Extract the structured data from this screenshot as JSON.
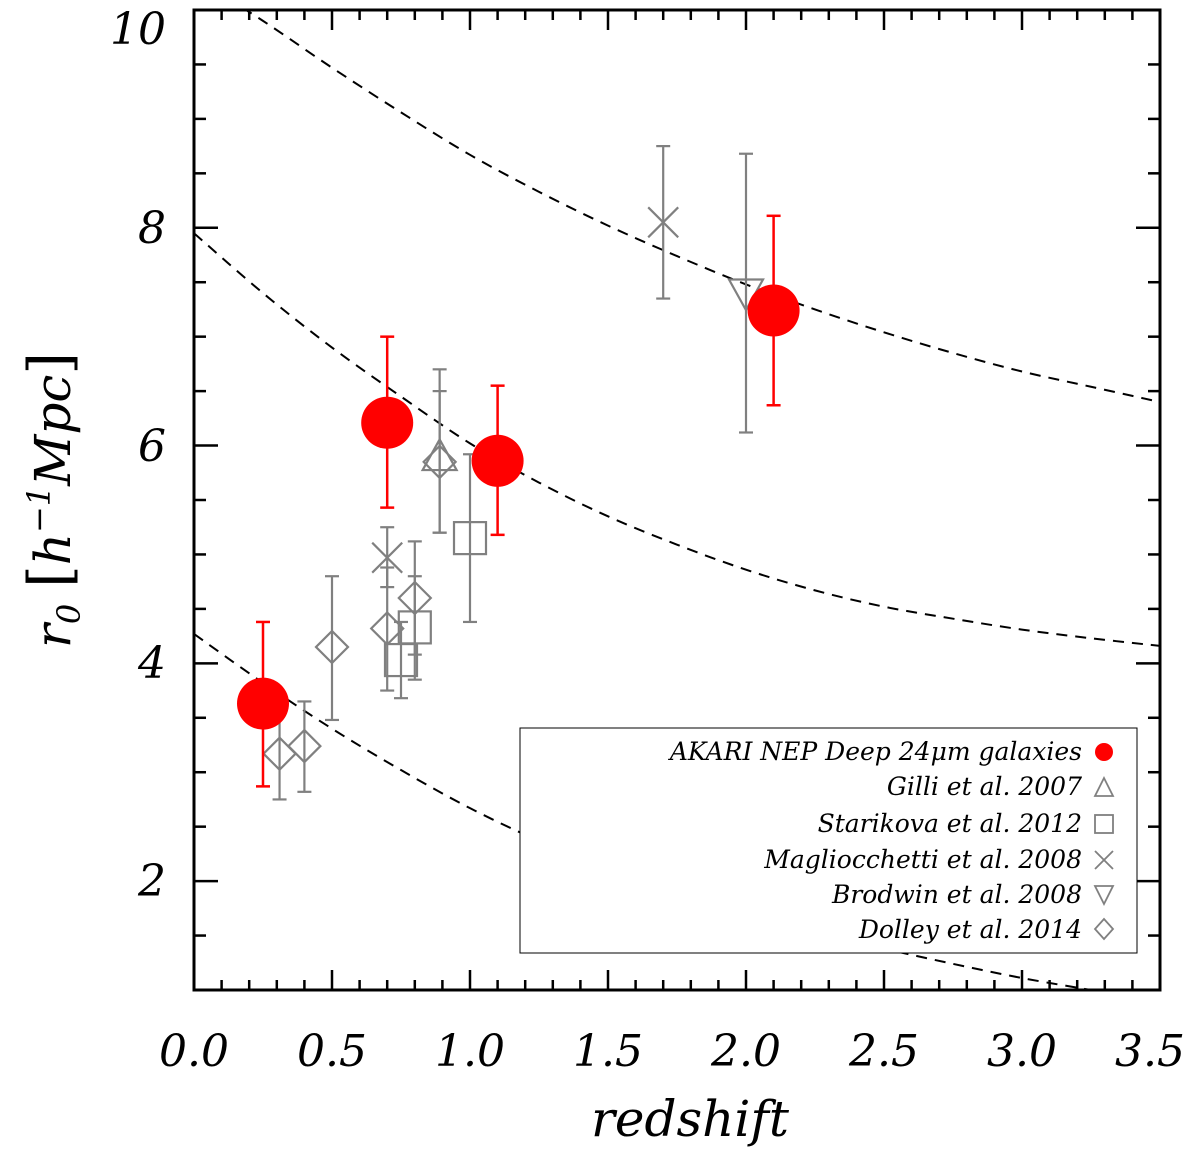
{
  "chart_data": {
    "type": "scatter",
    "title": "",
    "xlabel": "redshift",
    "ylabel": {
      "base": "r",
      "sub": "0",
      "unit_open": "[",
      "h": "h",
      "exp": "−1",
      "mpc": "Mpc",
      "unit_close": "]"
    },
    "xlim": [
      0.0,
      3.5
    ],
    "ylim": [
      1.0,
      10.0
    ],
    "xticks": [
      "0.0",
      "0.5",
      "1.0",
      "1.5",
      "2.0",
      "2.5",
      "3.0",
      "3.5"
    ],
    "yticks": [
      "2",
      "4",
      "6",
      "8",
      "10"
    ],
    "grid": false,
    "legend_position": "bottom-right",
    "series": [
      {
        "name": "AKARI NEP Deep 24μm galaxies",
        "marker": "filled-circle",
        "color": "#ff0000",
        "points": [
          {
            "x": 0.25,
            "y": 3.63,
            "lo": 2.87,
            "hi": 4.38
          },
          {
            "x": 0.7,
            "y": 6.21,
            "lo": 5.43,
            "hi": 7.0
          },
          {
            "x": 1.1,
            "y": 5.86,
            "lo": 5.18,
            "hi": 6.55
          },
          {
            "x": 2.1,
            "y": 7.24,
            "lo": 6.37,
            "hi": 8.11
          }
        ]
      },
      {
        "name": "Gilli et al. 2007",
        "marker": "triangle-up",
        "color": "#808080",
        "points": [
          {
            "x": 0.89,
            "y": 5.9,
            "lo": 5.2,
            "hi": 6.5
          }
        ]
      },
      {
        "name": "Starikova et al. 2012",
        "marker": "square",
        "color": "#808080",
        "points": [
          {
            "x": 0.75,
            "y": 4.03,
            "lo": 3.68,
            "hi": 4.38
          },
          {
            "x": 0.8,
            "y": 4.33,
            "lo": 3.85,
            "hi": 4.8
          },
          {
            "x": 1.0,
            "y": 5.15,
            "lo": 4.38,
            "hi": 5.92
          }
        ]
      },
      {
        "name": "Magliocchetti et al. 2008",
        "marker": "x",
        "color": "#808080",
        "points": [
          {
            "x": 0.7,
            "y": 4.97,
            "lo": 4.7,
            "hi": 5.25
          },
          {
            "x": 1.7,
            "y": 8.05,
            "lo": 7.35,
            "hi": 8.75
          }
        ]
      },
      {
        "name": "Brodwin et al. 2008",
        "marker": "triangle-down",
        "color": "#808080",
        "points": [
          {
            "x": 2.0,
            "y": 7.4,
            "lo": 6.12,
            "hi": 8.68
          }
        ]
      },
      {
        "name": "Dolley et al. 2014",
        "marker": "diamond",
        "color": "#808080",
        "points": [
          {
            "x": 0.31,
            "y": 3.17,
            "lo": 2.75,
            "hi": 3.6
          },
          {
            "x": 0.4,
            "y": 3.24,
            "lo": 2.82,
            "hi": 3.65
          },
          {
            "x": 0.5,
            "y": 4.15,
            "lo": 3.48,
            "hi": 4.8
          },
          {
            "x": 0.7,
            "y": 4.32,
            "lo": 3.75,
            "hi": 4.88
          },
          {
            "x": 0.8,
            "y": 4.6,
            "lo": 4.08,
            "hi": 5.12
          },
          {
            "x": 0.89,
            "y": 5.85,
            "lo": 5.2,
            "hi": 6.7
          }
        ]
      }
    ],
    "curves": [
      {
        "style": "dashed",
        "color": "#000000",
        "points": [
          [
            0.0,
            10.3
          ],
          [
            0.25,
            9.9
          ],
          [
            0.5,
            9.47
          ],
          [
            0.75,
            9.06
          ],
          [
            1.0,
            8.67
          ],
          [
            1.25,
            8.33
          ],
          [
            1.5,
            8.02
          ],
          [
            1.75,
            7.74
          ],
          [
            2.0,
            7.48
          ],
          [
            2.25,
            7.25
          ],
          [
            2.5,
            7.04
          ],
          [
            2.75,
            6.85
          ],
          [
            3.0,
            6.68
          ],
          [
            3.25,
            6.54
          ],
          [
            3.5,
            6.4
          ]
        ]
      },
      {
        "style": "dashed",
        "color": "#000000",
        "points": [
          [
            0.0,
            7.95
          ],
          [
            0.25,
            7.4
          ],
          [
            0.5,
            6.9
          ],
          [
            0.75,
            6.45
          ],
          [
            1.0,
            6.02
          ],
          [
            1.25,
            5.66
          ],
          [
            1.5,
            5.35
          ],
          [
            1.75,
            5.09
          ],
          [
            2.0,
            4.86
          ],
          [
            2.25,
            4.67
          ],
          [
            2.5,
            4.52
          ],
          [
            2.75,
            4.41
          ],
          [
            3.0,
            4.31
          ],
          [
            3.25,
            4.23
          ],
          [
            3.5,
            4.16
          ]
        ]
      },
      {
        "style": "dashed",
        "color": "#000000",
        "points": [
          [
            0.0,
            4.27
          ],
          [
            0.25,
            3.82
          ],
          [
            0.5,
            3.4
          ],
          [
            0.75,
            3.02
          ],
          [
            1.0,
            2.67
          ],
          [
            1.25,
            2.37
          ],
          [
            1.5,
            2.12
          ],
          [
            1.75,
            1.9
          ],
          [
            2.0,
            1.7
          ],
          [
            2.25,
            1.53
          ],
          [
            2.5,
            1.38
          ],
          [
            2.75,
            1.24
          ],
          [
            3.0,
            1.11
          ],
          [
            3.25,
            1.0
          ]
        ]
      }
    ]
  }
}
